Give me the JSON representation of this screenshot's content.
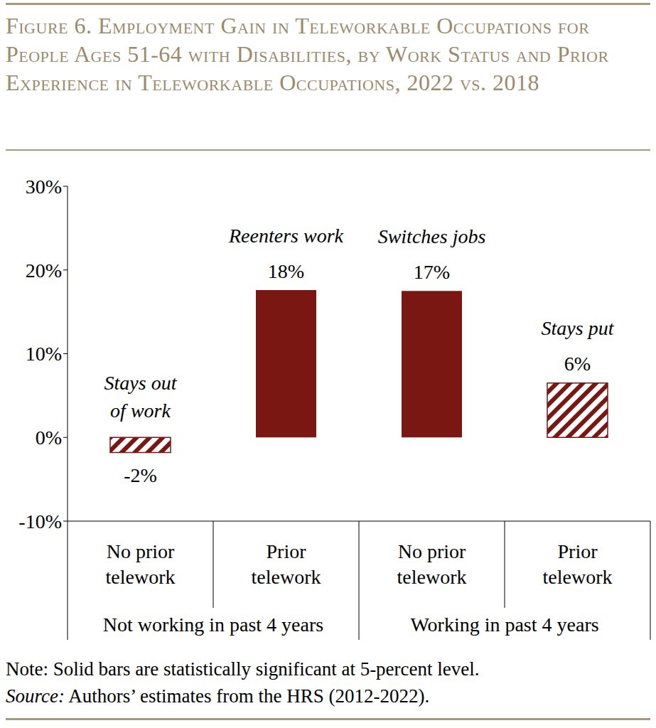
{
  "chart_data": {
    "type": "bar",
    "title": "Figure 6. Employment Gain in Teleworkable Occupations for People Ages 51-64 with Disabilities, by Work Status and Prior Experience in Teleworkable Occupations, 2022 vs. 2018",
    "categories": [
      "No prior\ntelework",
      "Prior\ntelework",
      "No prior\ntelework",
      "Prior\ntelework"
    ],
    "groups": [
      "Not working in past 4 years",
      "Working in past 4 years"
    ],
    "values": [
      -1.8,
      17.6,
      17.5,
      6.5
    ],
    "value_labels": [
      "-2%",
      "18%",
      "17%",
      "6%"
    ],
    "bar_labels": [
      "Stays out\nof work",
      "Reenters work",
      "Switches jobs",
      "Stays put"
    ],
    "significant": [
      false,
      true,
      true,
      false
    ],
    "color": "#7a1712",
    "ylim": [
      -10,
      30
    ],
    "yticks": [
      {
        "value": -10,
        "label": "-10%"
      },
      {
        "value": 0,
        "label": "0%"
      },
      {
        "value": 10,
        "label": "10%"
      },
      {
        "value": 20,
        "label": "20%"
      },
      {
        "value": 30,
        "label": "30%"
      }
    ],
    "grid": false,
    "data_labels": true,
    "note": "Note: Solid bars are statistically significant at 5-percent level.",
    "source_label": "Source:",
    "source": " Authors’ estimates from the HRS (2012-2022)."
  }
}
